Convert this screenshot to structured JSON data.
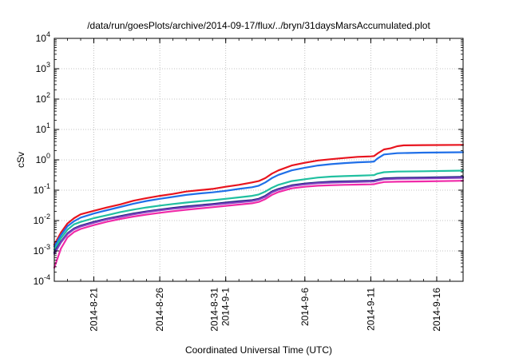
{
  "chart_data": {
    "type": "line",
    "title": "/data/run/goesPlots/archive/2014-09-17/flux/../bryn/31daysMarsAccumulated.plot",
    "xlabel": "Coordinated Universal Time (UTC)",
    "ylabel": "cSv",
    "y_scale": "log",
    "ylim": [
      0.0001,
      10000
    ],
    "xlim": [
      "2014-08-18",
      "2014-09-18"
    ],
    "grid": true,
    "legend": "none",
    "y_ticks": [
      {
        "value": 0.0001,
        "mantissa": "10",
        "exp": "-4"
      },
      {
        "value": 0.001,
        "mantissa": "10",
        "exp": "-3"
      },
      {
        "value": 0.01,
        "mantissa": "10",
        "exp": "-2"
      },
      {
        "value": 0.1,
        "mantissa": "10",
        "exp": "-1"
      },
      {
        "value": 1,
        "mantissa": "10",
        "exp": "0"
      },
      {
        "value": 10,
        "mantissa": "10",
        "exp": "1"
      },
      {
        "value": 100,
        "mantissa": "10",
        "exp": "2"
      },
      {
        "value": 1000,
        "mantissa": "10",
        "exp": "3"
      },
      {
        "value": 10000,
        "mantissa": "10",
        "exp": "4"
      }
    ],
    "x_ticks": [
      {
        "date": "2014-08-21",
        "lines": [
          "2014-8-21"
        ]
      },
      {
        "date": "2014-08-26",
        "lines": [
          "2014-8-26"
        ]
      },
      {
        "date": "2014-08-31",
        "lines": [
          "2014-8-31",
          "2014-9-1"
        ]
      },
      {
        "date": "2014-09-06",
        "lines": [
          "2014-9-6"
        ]
      },
      {
        "date": "2014-09-11",
        "lines": [
          "2014-9-11"
        ]
      },
      {
        "date": "2014-09-16",
        "lines": [
          "2014-9-16"
        ]
      }
    ],
    "series": [
      {
        "color": "#e8141e",
        "points": [
          [
            "2014-08-18 00:00",
            0.0016
          ],
          [
            "2014-08-18 12:00",
            0.004
          ],
          [
            "2014-08-19 00:00",
            0.008
          ],
          [
            "2014-08-19 12:00",
            0.012
          ],
          [
            "2014-08-20 00:00",
            0.016
          ],
          [
            "2014-08-21 00:00",
            0.021
          ],
          [
            "2014-08-22 00:00",
            0.027
          ],
          [
            "2014-08-23 00:00",
            0.034
          ],
          [
            "2014-08-24 00:00",
            0.045
          ],
          [
            "2014-08-25 00:00",
            0.055
          ],
          [
            "2014-08-26 00:00",
            0.065
          ],
          [
            "2014-08-27 00:00",
            0.075
          ],
          [
            "2014-08-28 00:00",
            0.09
          ],
          [
            "2014-08-29 00:00",
            0.1
          ],
          [
            "2014-08-30 00:00",
            0.11
          ],
          [
            "2014-08-31 00:00",
            0.13
          ],
          [
            "2014-09-01 00:00",
            0.15
          ],
          [
            "2014-09-02 00:00",
            0.18
          ],
          [
            "2014-09-02 12:00",
            0.2
          ],
          [
            "2014-09-03 00:00",
            0.25
          ],
          [
            "2014-09-03 12:00",
            0.35
          ],
          [
            "2014-09-04 00:00",
            0.45
          ],
          [
            "2014-09-05 00:00",
            0.65
          ],
          [
            "2014-09-06 00:00",
            0.8
          ],
          [
            "2014-09-07 00:00",
            0.95
          ],
          [
            "2014-09-08 00:00",
            1.05
          ],
          [
            "2014-09-09 00:00",
            1.15
          ],
          [
            "2014-09-10 00:00",
            1.25
          ],
          [
            "2014-09-11 00:00",
            1.3
          ],
          [
            "2014-09-11 06:00",
            1.33
          ],
          [
            "2014-09-11 12:00",
            1.6
          ],
          [
            "2014-09-12 00:00",
            2.2
          ],
          [
            "2014-09-12 12:00",
            2.4
          ],
          [
            "2014-09-13 00:00",
            2.8
          ],
          [
            "2014-09-13 12:00",
            3.0
          ],
          [
            "2014-09-15 00:00",
            3.05
          ],
          [
            "2014-09-18 00:00",
            3.1
          ]
        ]
      },
      {
        "color": "#1f6fe8",
        "points": [
          [
            "2014-08-18 00:00",
            0.0014
          ],
          [
            "2014-08-18 12:00",
            0.0033
          ],
          [
            "2014-08-19 00:00",
            0.0065
          ],
          [
            "2014-08-19 12:00",
            0.0095
          ],
          [
            "2014-08-20 00:00",
            0.0125
          ],
          [
            "2014-08-21 00:00",
            0.017
          ],
          [
            "2014-08-22 00:00",
            0.022
          ],
          [
            "2014-08-23 00:00",
            0.028
          ],
          [
            "2014-08-24 00:00",
            0.036
          ],
          [
            "2014-08-25 00:00",
            0.044
          ],
          [
            "2014-08-26 00:00",
            0.052
          ],
          [
            "2014-08-27 00:00",
            0.06
          ],
          [
            "2014-08-28 00:00",
            0.07
          ],
          [
            "2014-08-29 00:00",
            0.078
          ],
          [
            "2014-08-30 00:00",
            0.085
          ],
          [
            "2014-08-31 00:00",
            0.095
          ],
          [
            "2014-09-01 00:00",
            0.11
          ],
          [
            "2014-09-02 00:00",
            0.125
          ],
          [
            "2014-09-02 12:00",
            0.14
          ],
          [
            "2014-09-03 00:00",
            0.18
          ],
          [
            "2014-09-03 12:00",
            0.25
          ],
          [
            "2014-09-04 00:00",
            0.32
          ],
          [
            "2014-09-05 00:00",
            0.45
          ],
          [
            "2014-09-06 00:00",
            0.55
          ],
          [
            "2014-09-07 00:00",
            0.65
          ],
          [
            "2014-09-08 00:00",
            0.72
          ],
          [
            "2014-09-09 00:00",
            0.78
          ],
          [
            "2014-09-10 00:00",
            0.83
          ],
          [
            "2014-09-11 00:00",
            0.86
          ],
          [
            "2014-09-11 06:00",
            0.88
          ],
          [
            "2014-09-11 12:00",
            1.1
          ],
          [
            "2014-09-12 00:00",
            1.5
          ],
          [
            "2014-09-13 00:00",
            1.65
          ],
          [
            "2014-09-15 00:00",
            1.72
          ],
          [
            "2014-09-18 00:00",
            1.78
          ]
        ]
      },
      {
        "color": "#20c0a0",
        "points": [
          [
            "2014-08-18 00:00",
            0.0011
          ],
          [
            "2014-08-18 12:00",
            0.0026
          ],
          [
            "2014-08-19 00:00",
            0.005
          ],
          [
            "2014-08-19 12:00",
            0.0075
          ],
          [
            "2014-08-20 00:00",
            0.009
          ],
          [
            "2014-08-21 00:00",
            0.012
          ],
          [
            "2014-08-22 00:00",
            0.015
          ],
          [
            "2014-08-23 00:00",
            0.019
          ],
          [
            "2014-08-24 00:00",
            0.023
          ],
          [
            "2014-08-25 00:00",
            0.027
          ],
          [
            "2014-08-26 00:00",
            0.031
          ],
          [
            "2014-08-27 00:00",
            0.035
          ],
          [
            "2014-08-28 00:00",
            0.039
          ],
          [
            "2014-08-29 00:00",
            0.043
          ],
          [
            "2014-08-30 00:00",
            0.047
          ],
          [
            "2014-08-31 00:00",
            0.052
          ],
          [
            "2014-09-01 00:00",
            0.058
          ],
          [
            "2014-09-02 00:00",
            0.065
          ],
          [
            "2014-09-02 12:00",
            0.072
          ],
          [
            "2014-09-03 00:00",
            0.09
          ],
          [
            "2014-09-03 12:00",
            0.12
          ],
          [
            "2014-09-04 00:00",
            0.15
          ],
          [
            "2014-09-05 00:00",
            0.2
          ],
          [
            "2014-09-06 00:00",
            0.23
          ],
          [
            "2014-09-07 00:00",
            0.26
          ],
          [
            "2014-09-08 00:00",
            0.28
          ],
          [
            "2014-09-09 00:00",
            0.29
          ],
          [
            "2014-09-10 00:00",
            0.3
          ],
          [
            "2014-09-11 00:00",
            0.31
          ],
          [
            "2014-09-11 06:00",
            0.315
          ],
          [
            "2014-09-11 12:00",
            0.35
          ],
          [
            "2014-09-12 00:00",
            0.39
          ],
          [
            "2014-09-13 00:00",
            0.41
          ],
          [
            "2014-09-15 00:00",
            0.42
          ],
          [
            "2014-09-18 00:00",
            0.44
          ]
        ]
      },
      {
        "color": "#1a237e",
        "points": [
          [
            "2014-08-18 00:00",
            0.0009
          ],
          [
            "2014-08-18 12:00",
            0.002
          ],
          [
            "2014-08-19 00:00",
            0.0038
          ],
          [
            "2014-08-19 12:00",
            0.0055
          ],
          [
            "2014-08-20 00:00",
            0.0068
          ],
          [
            "2014-08-21 00:00",
            0.009
          ],
          [
            "2014-08-22 00:00",
            0.0115
          ],
          [
            "2014-08-23 00:00",
            0.014
          ],
          [
            "2014-08-24 00:00",
            0.017
          ],
          [
            "2014-08-25 00:00",
            0.02
          ],
          [
            "2014-08-26 00:00",
            0.023
          ],
          [
            "2014-08-27 00:00",
            0.026
          ],
          [
            "2014-08-28 00:00",
            0.029
          ],
          [
            "2014-08-29 00:00",
            0.032
          ],
          [
            "2014-08-30 00:00",
            0.035
          ],
          [
            "2014-08-31 00:00",
            0.039
          ],
          [
            "2014-09-01 00:00",
            0.043
          ],
          [
            "2014-09-02 00:00",
            0.047
          ],
          [
            "2014-09-02 12:00",
            0.052
          ],
          [
            "2014-09-03 00:00",
            0.065
          ],
          [
            "2014-09-03 12:00",
            0.09
          ],
          [
            "2014-09-04 00:00",
            0.11
          ],
          [
            "2014-09-05 00:00",
            0.145
          ],
          [
            "2014-09-06 00:00",
            0.165
          ],
          [
            "2014-09-07 00:00",
            0.18
          ],
          [
            "2014-09-08 00:00",
            0.19
          ],
          [
            "2014-09-09 00:00",
            0.195
          ],
          [
            "2014-09-10 00:00",
            0.2
          ],
          [
            "2014-09-11 00:00",
            0.205
          ],
          [
            "2014-09-11 06:00",
            0.207
          ],
          [
            "2014-09-11 12:00",
            0.22
          ],
          [
            "2014-09-12 00:00",
            0.245
          ],
          [
            "2014-09-13 00:00",
            0.255
          ],
          [
            "2014-09-15 00:00",
            0.26
          ],
          [
            "2014-09-18 00:00",
            0.275
          ]
        ]
      },
      {
        "color": "#8040c0",
        "points": [
          [
            "2014-08-18 00:00",
            0.0008
          ],
          [
            "2014-08-18 12:00",
            0.0019
          ],
          [
            "2014-08-19 00:00",
            0.0036
          ],
          [
            "2014-08-19 12:00",
            0.0052
          ],
          [
            "2014-08-20 00:00",
            0.0064
          ],
          [
            "2014-08-21 00:00",
            0.0085
          ],
          [
            "2014-08-22 00:00",
            0.011
          ],
          [
            "2014-08-23 00:00",
            0.0132
          ],
          [
            "2014-08-24 00:00",
            0.016
          ],
          [
            "2014-08-25 00:00",
            0.019
          ],
          [
            "2014-08-26 00:00",
            0.0218
          ],
          [
            "2014-08-27 00:00",
            0.0245
          ],
          [
            "2014-08-28 00:00",
            0.0272
          ],
          [
            "2014-08-29 00:00",
            0.03
          ],
          [
            "2014-08-30 00:00",
            0.033
          ],
          [
            "2014-08-31 00:00",
            0.0365
          ],
          [
            "2014-09-01 00:00",
            0.04
          ],
          [
            "2014-09-02 00:00",
            0.044
          ],
          [
            "2014-09-02 12:00",
            0.049
          ],
          [
            "2014-09-03 00:00",
            0.061
          ],
          [
            "2014-09-03 12:00",
            0.085
          ],
          [
            "2014-09-04 00:00",
            0.104
          ],
          [
            "2014-09-05 00:00",
            0.137
          ],
          [
            "2014-09-06 00:00",
            0.156
          ],
          [
            "2014-09-07 00:00",
            0.17
          ],
          [
            "2014-09-08 00:00",
            0.178
          ],
          [
            "2014-09-09 00:00",
            0.183
          ],
          [
            "2014-09-10 00:00",
            0.188
          ],
          [
            "2014-09-11 00:00",
            0.192
          ],
          [
            "2014-09-11 06:00",
            0.194
          ],
          [
            "2014-09-11 12:00",
            0.206
          ],
          [
            "2014-09-12 00:00",
            0.23
          ],
          [
            "2014-09-13 00:00",
            0.238
          ],
          [
            "2014-09-15 00:00",
            0.243
          ],
          [
            "2014-09-18 00:00",
            0.256
          ]
        ]
      },
      {
        "color": "#f02aa8",
        "points": [
          [
            "2014-08-18 00:00",
            0.00028
          ],
          [
            "2014-08-18 12:00",
            0.0012
          ],
          [
            "2014-08-19 00:00",
            0.0028
          ],
          [
            "2014-08-19 12:00",
            0.0042
          ],
          [
            "2014-08-20 00:00",
            0.0053
          ],
          [
            "2014-08-21 00:00",
            0.0071
          ],
          [
            "2014-08-22 00:00",
            0.0092
          ],
          [
            "2014-08-23 00:00",
            0.0113
          ],
          [
            "2014-08-24 00:00",
            0.0135
          ],
          [
            "2014-08-25 00:00",
            0.0158
          ],
          [
            "2014-08-26 00:00",
            0.018
          ],
          [
            "2014-08-27 00:00",
            0.0203
          ],
          [
            "2014-08-28 00:00",
            0.0226
          ],
          [
            "2014-08-29 00:00",
            0.025
          ],
          [
            "2014-08-30 00:00",
            0.0275
          ],
          [
            "2014-08-31 00:00",
            0.0305
          ],
          [
            "2014-09-01 00:00",
            0.0335
          ],
          [
            "2014-09-02 00:00",
            0.037
          ],
          [
            "2014-09-02 12:00",
            0.041
          ],
          [
            "2014-09-03 00:00",
            0.051
          ],
          [
            "2014-09-03 12:00",
            0.07
          ],
          [
            "2014-09-04 00:00",
            0.087
          ],
          [
            "2014-09-05 00:00",
            0.115
          ],
          [
            "2014-09-06 00:00",
            0.13
          ],
          [
            "2014-09-07 00:00",
            0.14
          ],
          [
            "2014-09-08 00:00",
            0.146
          ],
          [
            "2014-09-09 00:00",
            0.15
          ],
          [
            "2014-09-10 00:00",
            0.153
          ],
          [
            "2014-09-11 00:00",
            0.156
          ],
          [
            "2014-09-11 06:00",
            0.158
          ],
          [
            "2014-09-11 12:00",
            0.168
          ],
          [
            "2014-09-12 00:00",
            0.185
          ],
          [
            "2014-09-13 00:00",
            0.19
          ],
          [
            "2014-09-15 00:00",
            0.195
          ],
          [
            "2014-09-18 00:00",
            0.205
          ]
        ]
      }
    ]
  }
}
